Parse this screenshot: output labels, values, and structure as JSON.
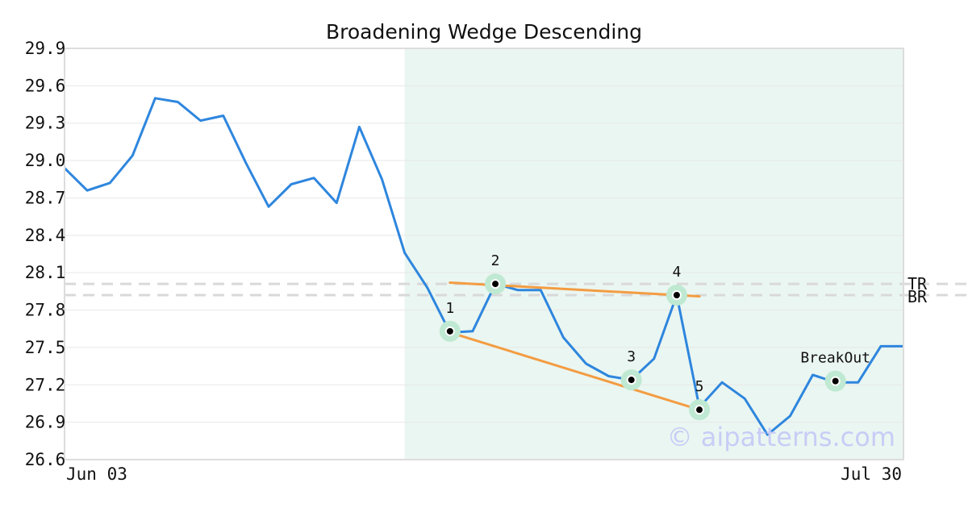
{
  "chart_data": {
    "type": "line",
    "title": "Broadening Wedge Descending",
    "xlabel": "",
    "ylabel": "",
    "x_tick_labels": [
      "Jun 03",
      "Jul 30"
    ],
    "y_ticks": [
      "26.6",
      "26.9",
      "27.2",
      "27.5",
      "27.8",
      "28.1",
      "28.4",
      "28.7",
      "29.0",
      "29.3",
      "29.6",
      "29.9"
    ],
    "ylim": [
      26.6,
      29.9
    ],
    "grid": true,
    "colors": {
      "price": "#2e86de",
      "trend": "#f39c42",
      "highlight": "#eaf6f1",
      "marker_halo": "#bfe9d2",
      "level": "#d9d9d9"
    },
    "series": [
      {
        "values": [
          28.94,
          28.76,
          28.82,
          29.04,
          29.5,
          29.47,
          29.32,
          29.36,
          28.98,
          28.63,
          28.81,
          28.86,
          28.66,
          29.27,
          28.85,
          28.26,
          27.98,
          27.62,
          27.63,
          28.01,
          27.96,
          27.96,
          27.58,
          27.37,
          27.27,
          27.24,
          27.41,
          27.92,
          27.02,
          27.22,
          27.09,
          26.8,
          26.95,
          27.28,
          27.22,
          27.22,
          27.51,
          27.51
        ]
      }
    ],
    "highlight_range": [
      15,
      37
    ],
    "levels": [
      {
        "label": "TR",
        "value": 28.01
      },
      {
        "label": "BR",
        "value": 27.92
      }
    ],
    "trendlines": [
      {
        "from": [
          17,
          28.02
        ],
        "to": [
          28,
          27.91
        ]
      },
      {
        "from": [
          17,
          27.62
        ],
        "to": [
          28,
          27.0
        ]
      }
    ],
    "points": [
      {
        "label": "1",
        "index": 17,
        "value": 27.63
      },
      {
        "label": "2",
        "index": 19,
        "value": 28.01
      },
      {
        "label": "3",
        "index": 25,
        "value": 27.24
      },
      {
        "label": "4",
        "index": 27,
        "value": 27.92
      },
      {
        "label": "5",
        "index": 28,
        "value": 27.0
      },
      {
        "label": "BreakOut",
        "index": 34,
        "value": 27.23
      }
    ],
    "watermark": "© aipatterns.com"
  }
}
